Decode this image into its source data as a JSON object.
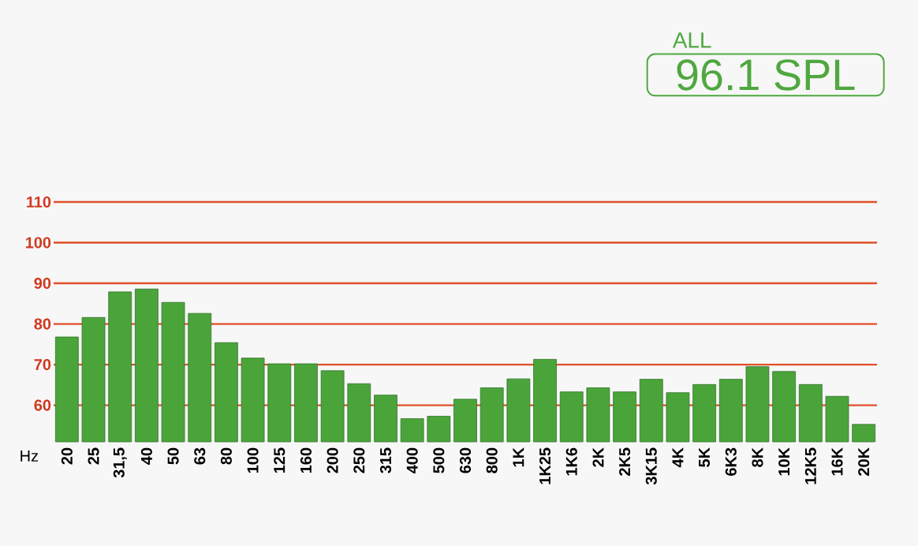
{
  "chart_data": {
    "type": "bar",
    "xlabel": "Hz",
    "categories": [
      "20",
      "25",
      "31,5",
      "40",
      "50",
      "63",
      "80",
      "100",
      "125",
      "160",
      "200",
      "250",
      "315",
      "400",
      "500",
      "630",
      "800",
      "1K",
      "1K25",
      "1K6",
      "2K",
      "2K5",
      "3K15",
      "4K",
      "5K",
      "6K3",
      "8K",
      "10K",
      "12K5",
      "16K",
      "20K"
    ],
    "values": [
      76.8,
      81.6,
      87.9,
      88.6,
      85.3,
      82.6,
      75.4,
      71.6,
      70.2,
      70.2,
      68.5,
      65.3,
      62.5,
      56.7,
      57.3,
      61.5,
      64.3,
      66.5,
      71.3,
      63.3,
      64.3,
      63.3,
      66.4,
      63.1,
      65.1,
      66.4,
      69.5,
      68.3,
      65.1,
      62.2,
      55.3
    ],
    "color": "#4aa43a",
    "ylim": [
      51,
      110
    ],
    "yticks": [
      60,
      70,
      80,
      90,
      100,
      110
    ],
    "grid": "y",
    "annotations": [
      "ALL",
      "96.1 SPL"
    ]
  }
}
